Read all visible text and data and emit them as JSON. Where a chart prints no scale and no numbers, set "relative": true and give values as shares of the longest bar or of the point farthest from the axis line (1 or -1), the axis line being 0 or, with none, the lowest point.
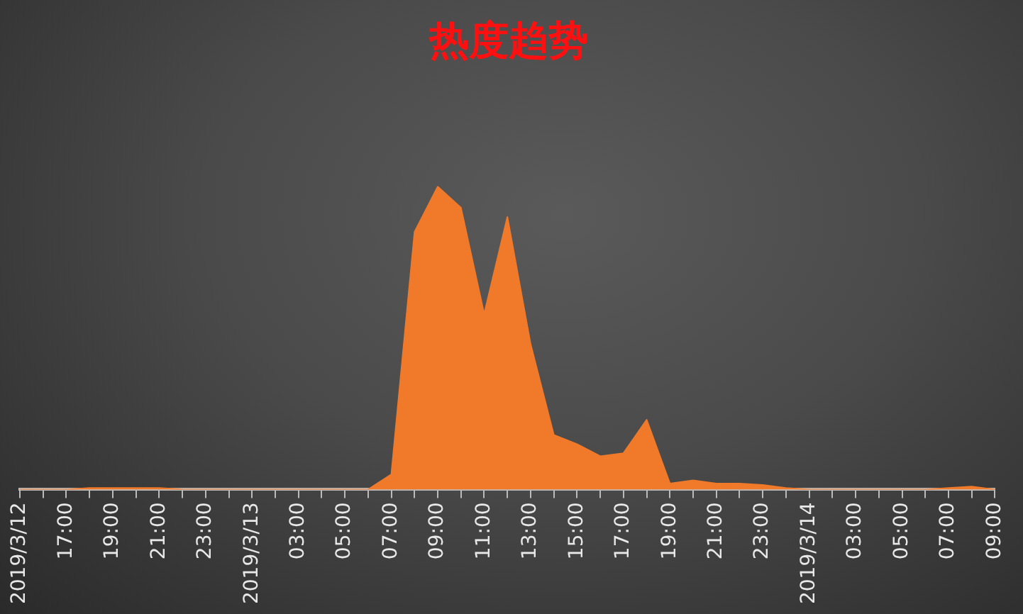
{
  "chart_data": {
    "type": "area",
    "title": "热度趋势",
    "relative": true,
    "categories": [
      "2019/3/12",
      null,
      "17:00",
      null,
      "19:00",
      null,
      "21:00",
      null,
      "23:00",
      null,
      "2019/3/13",
      null,
      "03:00",
      null,
      "05:00",
      null,
      "07:00",
      null,
      "09:00",
      null,
      "11:00",
      null,
      "13:00",
      null,
      "15:00",
      null,
      "17:00",
      null,
      "19:00",
      null,
      "21:00",
      null,
      "23:00",
      null,
      "2019/3/14",
      null,
      "03:00",
      null,
      "05:00",
      null,
      "07:00",
      null,
      "09:00"
    ],
    "series": [
      {
        "color": "#f07a2a",
        "values": [
          0,
          0,
          0,
          0.005,
          0.005,
          0.005,
          0.005,
          0,
          0,
          0,
          0,
          0,
          0,
          0,
          0,
          0,
          0.05,
          0.85,
          1,
          0.93,
          0.58,
          0.9,
          0.48,
          0.18,
          0.15,
          0.11,
          0.12,
          0.23,
          0.02,
          0.03,
          0.02,
          0.02,
          0.015,
          0.005,
          0,
          0,
          0,
          0,
          0,
          0,
          0.005,
          0.01,
          0
        ]
      }
    ],
    "grid": false,
    "legend": false
  }
}
